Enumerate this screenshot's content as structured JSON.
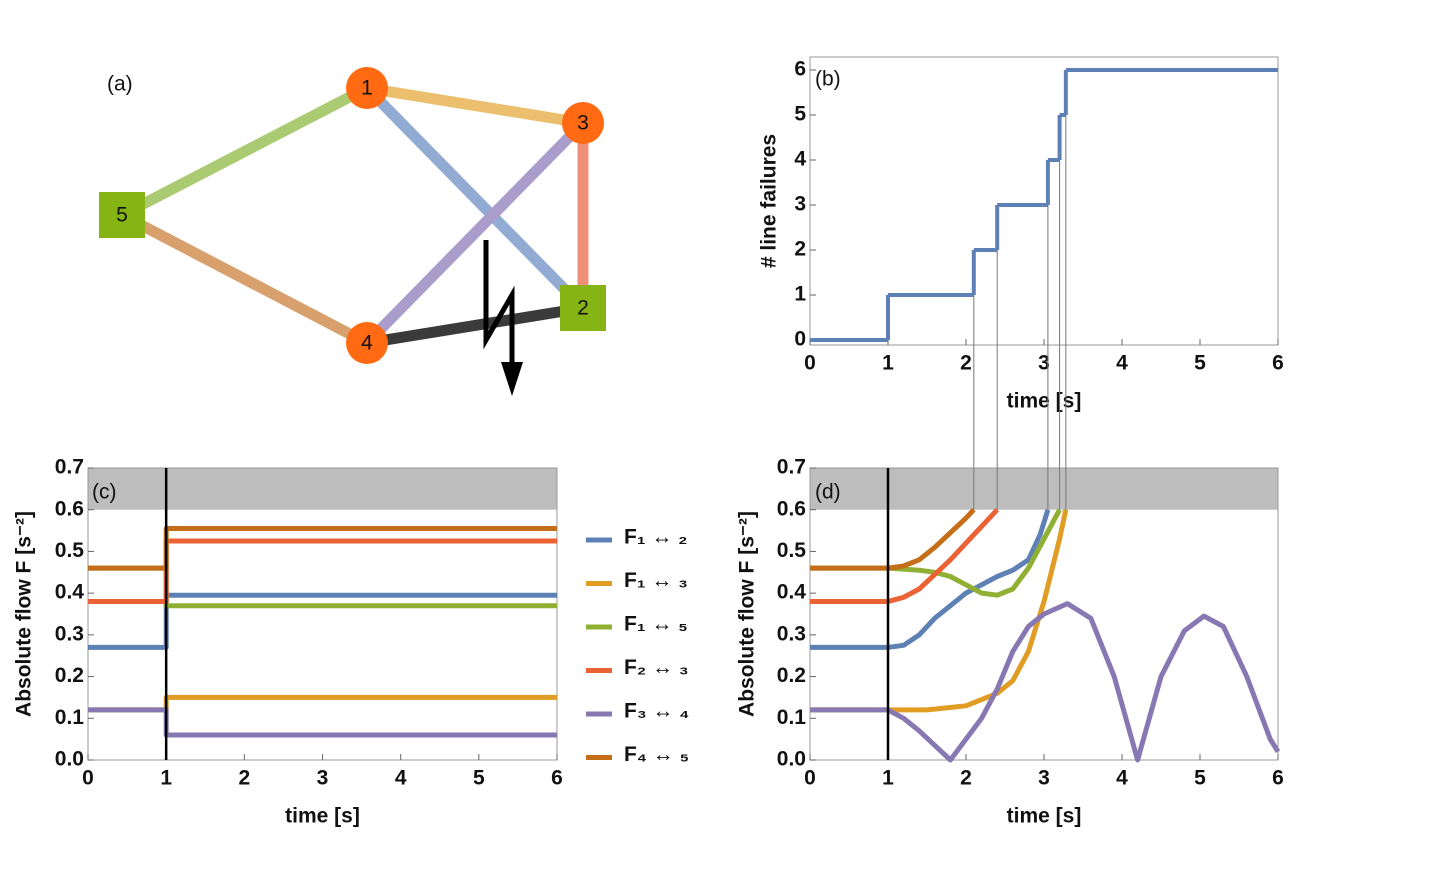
{
  "diagram": {
    "label": "(a)",
    "nodes": [
      {
        "label": "1",
        "shape": "circle",
        "color": "#ff6a13"
      },
      {
        "label": "2",
        "shape": "square",
        "color": "#86b414"
      },
      {
        "label": "3",
        "shape": "circle",
        "color": "#ff6a13"
      },
      {
        "label": "4",
        "shape": "circle",
        "color": "#ff6a13"
      },
      {
        "label": "5",
        "shape": "square",
        "color": "#86b414"
      }
    ],
    "edges": [
      {
        "from": "1",
        "to": "5",
        "color": "#aacb72"
      },
      {
        "from": "1",
        "to": "3",
        "color": "#ecbf6e"
      },
      {
        "from": "1",
        "to": "2",
        "color": "#92abd3"
      },
      {
        "from": "3",
        "to": "4",
        "color": "#ab9dcb"
      },
      {
        "from": "3",
        "to": "2",
        "color": "#ee9079"
      },
      {
        "from": "5",
        "to": "4",
        "color": "#d8a06c"
      },
      {
        "from": "4",
        "to": "2",
        "color": "#3a3a3a"
      }
    ]
  },
  "chart_data": [
    {
      "type": "step",
      "label": "(b)",
      "xlabel": "time [s]",
      "ylabel": "# line failures",
      "x": [
        0,
        1,
        2.1,
        2.4,
        3.05,
        3.2,
        3.28
      ],
      "values": [
        0,
        1,
        2,
        3,
        4,
        5,
        6
      ],
      "color": "#5e81b5",
      "xlim": [
        0,
        6
      ],
      "ylim": [
        0,
        6
      ],
      "xticks": [
        0,
        1,
        2,
        3,
        4,
        5,
        6
      ],
      "yticks": [
        0,
        1,
        2,
        3,
        4,
        5,
        6
      ]
    },
    {
      "type": "line",
      "label": "(c)",
      "xlabel": "time [s]",
      "ylabel": "Absolute flow F [s⁻²]",
      "x": [
        0,
        1,
        1,
        6
      ],
      "series": [
        {
          "name": "F₁ ↔ ₂",
          "color": "#5e81b5",
          "values": [
            0.27,
            0.27,
            0.395,
            0.395
          ]
        },
        {
          "name": "F₁ ↔ ₃",
          "color": "#e19c24",
          "values": [
            0.12,
            0.12,
            0.15,
            0.15
          ]
        },
        {
          "name": "F₁ ↔ ₅",
          "color": "#8fb032",
          "values": [
            0.46,
            0.46,
            0.37,
            0.37
          ]
        },
        {
          "name": "F₂ ↔ ₃",
          "color": "#eb6235",
          "values": [
            0.38,
            0.38,
            0.525,
            0.525
          ]
        },
        {
          "name": "F₃ ↔ ₄",
          "color": "#8778b3",
          "values": [
            0.12,
            0.12,
            0.06,
            0.06
          ]
        },
        {
          "name": "F₄ ↔ ₅",
          "color": "#c56e1a",
          "values": [
            0.46,
            0.46,
            0.555,
            0.555
          ]
        }
      ],
      "xlim": [
        0,
        6
      ],
      "ylim": [
        0,
        0.7
      ],
      "xticks": [
        0,
        1,
        2,
        3,
        4,
        5,
        6
      ],
      "yticks": [
        {
          "value": 0,
          "label": "0.0"
        },
        0.1,
        0.2,
        0.3,
        0.4,
        0.5,
        0.6,
        0.7
      ],
      "band": [
        0.6,
        0.7
      ],
      "vline": 1,
      "legend": "right"
    },
    {
      "type": "line",
      "label": "(d)",
      "xlabel": "time [s]",
      "ylabel": "Absolute flow F [s⁻²]",
      "series": [
        {
          "color": "#5e81b5",
          "x": [
            0,
            1,
            1.2,
            1.4,
            1.6,
            1.8,
            2.0,
            2.2,
            2.4,
            2.6,
            2.8,
            2.95,
            3.05
          ],
          "values": [
            0.27,
            0.27,
            0.275,
            0.3,
            0.34,
            0.37,
            0.4,
            0.42,
            0.44,
            0.455,
            0.48,
            0.54,
            0.6
          ]
        },
        {
          "color": "#e19c24",
          "x": [
            0,
            1,
            1.5,
            2.0,
            2.4,
            2.6,
            2.8,
            3.0,
            3.2,
            3.28
          ],
          "values": [
            0.12,
            0.12,
            0.12,
            0.13,
            0.16,
            0.19,
            0.26,
            0.38,
            0.53,
            0.6
          ]
        },
        {
          "color": "#8fb032",
          "x": [
            0,
            1,
            1.4,
            1.6,
            1.8,
            2.0,
            2.2,
            2.4,
            2.6,
            2.8,
            3.0,
            3.2
          ],
          "values": [
            0.46,
            0.46,
            0.455,
            0.45,
            0.44,
            0.42,
            0.4,
            0.395,
            0.41,
            0.46,
            0.53,
            0.6
          ]
        },
        {
          "color": "#eb6235",
          "x": [
            0,
            1,
            1.2,
            1.4,
            1.6,
            1.8,
            2.0,
            2.2,
            2.4
          ],
          "values": [
            0.38,
            0.38,
            0.39,
            0.41,
            0.445,
            0.48,
            0.52,
            0.56,
            0.6
          ]
        },
        {
          "color": "#8778b3",
          "x": [
            0,
            1,
            1.2,
            1.4,
            1.6,
            1.8,
            2.0,
            2.2,
            2.4,
            2.6,
            2.8,
            3.0,
            3.3,
            3.6,
            3.9,
            4.2,
            4.5,
            4.8,
            5.05,
            5.3,
            5.6,
            5.9,
            6
          ],
          "values": [
            0.12,
            0.12,
            0.1,
            0.07,
            0.035,
            0,
            0.05,
            0.1,
            0.17,
            0.26,
            0.32,
            0.35,
            0.375,
            0.34,
            0.2,
            0,
            0.2,
            0.31,
            0.345,
            0.32,
            0.2,
            0.05,
            0.02
          ]
        },
        {
          "color": "#c56e1a",
          "x": [
            0,
            1,
            1.2,
            1.4,
            1.6,
            1.8,
            2.0,
            2.1
          ],
          "values": [
            0.46,
            0.46,
            0.465,
            0.48,
            0.51,
            0.545,
            0.58,
            0.6
          ]
        }
      ],
      "xlim": [
        0,
        6
      ],
      "ylim": [
        0,
        0.7
      ],
      "xticks": [
        0,
        1,
        2,
        3,
        4,
        5,
        6
      ],
      "yticks": [
        {
          "value": 0,
          "label": "0.0"
        },
        0.1,
        0.2,
        0.3,
        0.4,
        0.5,
        0.6,
        0.7
      ],
      "band": [
        0.6,
        0.7
      ],
      "vline": 1
    }
  ]
}
